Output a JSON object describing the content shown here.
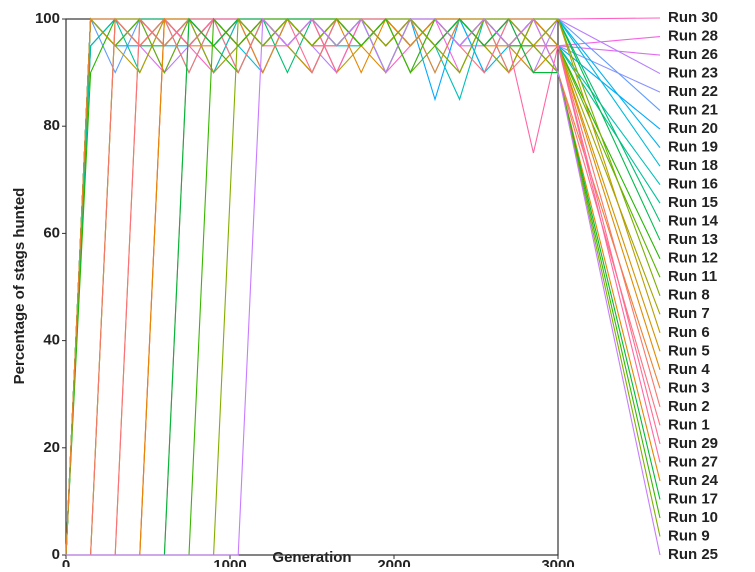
{
  "chart_data": {
    "type": "line",
    "x_label": "Generation",
    "y_label": "Percentage of stags hunted",
    "x": [
      0,
      150,
      300,
      450,
      600,
      750,
      900,
      1050,
      1200,
      1350,
      1500,
      1650,
      1800,
      1950,
      2100,
      2250,
      2400,
      2550,
      2700,
      2850,
      3000
    ],
    "xlim": [
      0,
      3000
    ],
    "xticks": [
      0,
      1000,
      2000,
      3000
    ],
    "ylim": [
      0,
      100
    ],
    "yticks": [
      0,
      20,
      40,
      60,
      80,
      100
    ],
    "series": [
      {
        "name": "Run 30",
        "color": "#ff61c3",
        "values": [
          0,
          100,
          95,
          100,
          100,
          95,
          90,
          100,
          95,
          100,
          95,
          100,
          100,
          90,
          95,
          100,
          95,
          100,
          95,
          100,
          100
        ]
      },
      {
        "name": "Run 28",
        "color": "#f564e3",
        "values": [
          0,
          95,
          100,
          95,
          100,
          100,
          95,
          100,
          90,
          100,
          95,
          95,
          100,
          100,
          95,
          100,
          90,
          100,
          95,
          100,
          95
        ]
      },
      {
        "name": "Run 26",
        "color": "#e06cf0",
        "values": [
          0,
          100,
          100,
          95,
          90,
          100,
          95,
          100,
          100,
          95,
          100,
          90,
          100,
          95,
          100,
          100,
          95,
          95,
          100,
          90,
          95
        ]
      },
      {
        "name": "Run 23",
        "color": "#b77dff",
        "values": [
          0,
          100,
          95,
          100,
          90,
          95,
          100,
          95,
          100,
          100,
          95,
          90,
          100,
          95,
          100,
          95,
          100,
          100,
          95,
          90,
          100
        ]
      },
      {
        "name": "Run 22",
        "color": "#8b93ff",
        "values": [
          0,
          95,
          100,
          100,
          95,
          100,
          90,
          95,
          100,
          95,
          100,
          100,
          95,
          100,
          90,
          100,
          95,
          100,
          95,
          100,
          95
        ]
      },
      {
        "name": "Run 21",
        "color": "#619cff",
        "values": [
          0,
          100,
          90,
          100,
          95,
          100,
          100,
          95,
          100,
          95,
          90,
          100,
          100,
          95,
          100,
          95,
          100,
          90,
          100,
          95,
          100
        ]
      },
      {
        "name": "Run 20",
        "color": "#00a9ff",
        "values": [
          0,
          100,
          95,
          95,
          100,
          90,
          100,
          100,
          95,
          100,
          95,
          100,
          95,
          100,
          100,
          85,
          100,
          95,
          100,
          95,
          95
        ]
      },
      {
        "name": "Run 19",
        "color": "#00b4ef",
        "values": [
          0,
          95,
          100,
          100,
          95,
          95,
          100,
          90,
          100,
          100,
          95,
          100,
          95,
          100,
          95,
          100,
          100,
          90,
          95,
          100,
          100
        ]
      },
      {
        "name": "Run 18",
        "color": "#00bcd8",
        "values": [
          0,
          100,
          100,
          95,
          100,
          95,
          100,
          95,
          90,
          100,
          100,
          95,
          100,
          95,
          100,
          90,
          100,
          100,
          95,
          95,
          100
        ]
      },
      {
        "name": "Run 16",
        "color": "#00c0b8",
        "values": [
          0,
          100,
          95,
          100,
          95,
          100,
          90,
          100,
          95,
          100,
          100,
          95,
          95,
          100,
          100,
          95,
          85,
          100,
          95,
          100,
          95
        ]
      },
      {
        "name": "Run 15",
        "color": "#00c19a",
        "values": [
          0,
          95,
          100,
          90,
          100,
          100,
          95,
          100,
          100,
          95,
          100,
          95,
          100,
          90,
          100,
          95,
          100,
          95,
          100,
          100,
          95
        ]
      },
      {
        "name": "Run 14",
        "color": "#00be70",
        "values": [
          0,
          100,
          95,
          100,
          100,
          95,
          100,
          95,
          100,
          90,
          100,
          100,
          95,
          100,
          95,
          100,
          95,
          100,
          90,
          100,
          100
        ]
      },
      {
        "name": "Run 13",
        "color": "#00bb4e",
        "values": [
          0,
          100,
          100,
          95,
          95,
          100,
          95,
          100,
          100,
          95,
          90,
          100,
          95,
          100,
          100,
          95,
          100,
          95,
          100,
          95,
          100
        ]
      },
      {
        "name": "Run 12",
        "color": "#24b700",
        "values": [
          0,
          90,
          100,
          100,
          95,
          100,
          95,
          90,
          100,
          95,
          100,
          100,
          95,
          100,
          95,
          100,
          100,
          95,
          90,
          100,
          95
        ]
      },
      {
        "name": "Run 11",
        "color": "#5bb300",
        "values": [
          0,
          100,
          95,
          100,
          90,
          100,
          100,
          95,
          100,
          95,
          100,
          95,
          100,
          100,
          90,
          95,
          100,
          100,
          95,
          100,
          95
        ]
      },
      {
        "name": "Run 8",
        "color": "#7cae00",
        "values": [
          0,
          0,
          100,
          95,
          100,
          95,
          100,
          100,
          90,
          100,
          95,
          100,
          95,
          100,
          100,
          95,
          90,
          100,
          95,
          100,
          100
        ]
      },
      {
        "name": "Run 7",
        "color": "#a3a500",
        "values": [
          0,
          0,
          100,
          100,
          95,
          100,
          90,
          95,
          100,
          100,
          95,
          100,
          100,
          95,
          100,
          95,
          100,
          95,
          90,
          100,
          95
        ]
      },
      {
        "name": "Run 6",
        "color": "#bb9d00",
        "values": [
          0,
          100,
          95,
          90,
          100,
          95,
          100,
          100,
          95,
          100,
          100,
          90,
          95,
          100,
          95,
          100,
          100,
          95,
          100,
          95,
          100
        ]
      },
      {
        "name": "Run 5",
        "color": "#cf9400",
        "values": [
          0,
          0,
          0,
          100,
          95,
          100,
          100,
          95,
          100,
          95,
          90,
          100,
          100,
          95,
          100,
          95,
          100,
          100,
          95,
          90,
          95
        ]
      },
      {
        "name": "Run 4",
        "color": "#de8c00",
        "values": [
          0,
          0,
          0,
          0,
          100,
          95,
          100,
          95,
          100,
          100,
          95,
          100,
          95,
          90,
          100,
          100,
          95,
          100,
          95,
          100,
          95
        ]
      },
      {
        "name": "Run 3",
        "color": "#ea8331",
        "values": [
          0,
          100,
          100,
          95,
          100,
          95,
          95,
          100,
          90,
          100,
          95,
          100,
          100,
          95,
          100,
          90,
          100,
          95,
          100,
          100,
          90
        ]
      },
      {
        "name": "Run 2",
        "color": "#f8766d",
        "values": [
          0,
          0,
          100,
          95,
          100,
          90,
          100,
          95,
          100,
          100,
          95,
          95,
          100,
          100,
          95,
          100,
          95,
          100,
          90,
          95,
          95
        ]
      },
      {
        "name": "Run 1",
        "color": "#fc717f",
        "values": [
          0,
          0,
          0,
          100,
          95,
          100,
          100,
          90,
          100,
          95,
          100,
          95,
          100,
          100,
          95,
          100,
          95,
          90,
          100,
          95,
          90
        ]
      },
      {
        "name": "Run 29",
        "color": "#ff6c91",
        "values": [
          0,
          0,
          0,
          0,
          0,
          100,
          95,
          100,
          95,
          100,
          90,
          100,
          100,
          95,
          100,
          95,
          100,
          95,
          100,
          95,
          95
        ]
      },
      {
        "name": "Run 27",
        "color": "#ff67a4",
        "values": [
          0,
          0,
          0,
          0,
          100,
          95,
          100,
          100,
          95,
          95,
          100,
          90,
          100,
          95,
          100,
          100,
          95,
          100,
          95,
          75,
          95
        ]
      },
      {
        "name": "Run 24",
        "color": "#e58700",
        "values": [
          0,
          0,
          0,
          0,
          100,
          100,
          95,
          100,
          95,
          100,
          95,
          100,
          90,
          100,
          95,
          100,
          100,
          95,
          95,
          100,
          90
        ]
      },
      {
        "name": "Run 17",
        "color": "#00ba38",
        "values": [
          0,
          0,
          0,
          0,
          0,
          100,
          95,
          100,
          95,
          100,
          100,
          95,
          100,
          90,
          100,
          95,
          100,
          95,
          100,
          90,
          90
        ]
      },
      {
        "name": "Run 10",
        "color": "#39b600",
        "values": [
          0,
          0,
          0,
          0,
          0,
          0,
          100,
          95,
          100,
          100,
          95,
          100,
          95,
          100,
          90,
          100,
          95,
          100,
          95,
          95,
          90
        ]
      },
      {
        "name": "Run 9",
        "color": "#85ad00",
        "values": [
          0,
          0,
          0,
          0,
          0,
          0,
          0,
          100,
          95,
          100,
          95,
          100,
          100,
          95,
          100,
          95,
          90,
          100,
          100,
          95,
          90
        ]
      },
      {
        "name": "Run 25",
        "color": "#c77cff",
        "values": [
          0,
          0,
          0,
          0,
          0,
          0,
          0,
          0,
          100,
          95,
          100,
          95,
          100,
          90,
          100,
          100,
          95,
          100,
          95,
          100,
          90
        ]
      }
    ]
  }
}
